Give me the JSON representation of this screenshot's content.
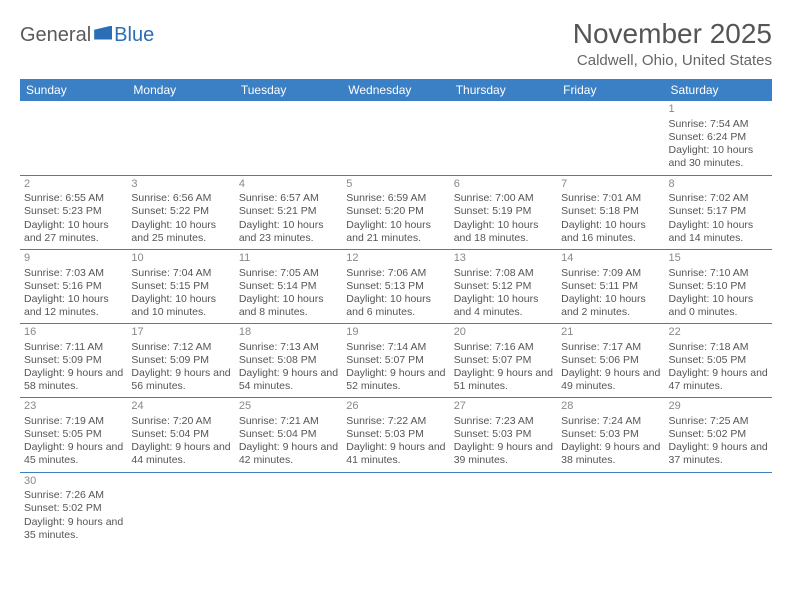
{
  "logo": {
    "general": "General",
    "blue": "Blue"
  },
  "title": "November 2025",
  "subtitle": "Caldwell, Ohio, United States",
  "colors": {
    "header_bg": "#3b7fc4",
    "header_text": "#ffffff",
    "border": "#3b7fc4",
    "text": "#555555",
    "daynum": "#888888",
    "logo_gray": "#5a5a5a",
    "logo_blue": "#2a6fb5"
  },
  "weekdays": [
    "Sunday",
    "Monday",
    "Tuesday",
    "Wednesday",
    "Thursday",
    "Friday",
    "Saturday"
  ],
  "weeks": [
    [
      null,
      null,
      null,
      null,
      null,
      null,
      {
        "n": "1",
        "sr": "7:54 AM",
        "ss": "6:24 PM",
        "dl": "10 hours and 30 minutes."
      }
    ],
    [
      {
        "n": "2",
        "sr": "6:55 AM",
        "ss": "5:23 PM",
        "dl": "10 hours and 27 minutes."
      },
      {
        "n": "3",
        "sr": "6:56 AM",
        "ss": "5:22 PM",
        "dl": "10 hours and 25 minutes."
      },
      {
        "n": "4",
        "sr": "6:57 AM",
        "ss": "5:21 PM",
        "dl": "10 hours and 23 minutes."
      },
      {
        "n": "5",
        "sr": "6:59 AM",
        "ss": "5:20 PM",
        "dl": "10 hours and 21 minutes."
      },
      {
        "n": "6",
        "sr": "7:00 AM",
        "ss": "5:19 PM",
        "dl": "10 hours and 18 minutes."
      },
      {
        "n": "7",
        "sr": "7:01 AM",
        "ss": "5:18 PM",
        "dl": "10 hours and 16 minutes."
      },
      {
        "n": "8",
        "sr": "7:02 AM",
        "ss": "5:17 PM",
        "dl": "10 hours and 14 minutes."
      }
    ],
    [
      {
        "n": "9",
        "sr": "7:03 AM",
        "ss": "5:16 PM",
        "dl": "10 hours and 12 minutes."
      },
      {
        "n": "10",
        "sr": "7:04 AM",
        "ss": "5:15 PM",
        "dl": "10 hours and 10 minutes."
      },
      {
        "n": "11",
        "sr": "7:05 AM",
        "ss": "5:14 PM",
        "dl": "10 hours and 8 minutes."
      },
      {
        "n": "12",
        "sr": "7:06 AM",
        "ss": "5:13 PM",
        "dl": "10 hours and 6 minutes."
      },
      {
        "n": "13",
        "sr": "7:08 AM",
        "ss": "5:12 PM",
        "dl": "10 hours and 4 minutes."
      },
      {
        "n": "14",
        "sr": "7:09 AM",
        "ss": "5:11 PM",
        "dl": "10 hours and 2 minutes."
      },
      {
        "n": "15",
        "sr": "7:10 AM",
        "ss": "5:10 PM",
        "dl": "10 hours and 0 minutes."
      }
    ],
    [
      {
        "n": "16",
        "sr": "7:11 AM",
        "ss": "5:09 PM",
        "dl": "9 hours and 58 minutes."
      },
      {
        "n": "17",
        "sr": "7:12 AM",
        "ss": "5:09 PM",
        "dl": "9 hours and 56 minutes."
      },
      {
        "n": "18",
        "sr": "7:13 AM",
        "ss": "5:08 PM",
        "dl": "9 hours and 54 minutes."
      },
      {
        "n": "19",
        "sr": "7:14 AM",
        "ss": "5:07 PM",
        "dl": "9 hours and 52 minutes."
      },
      {
        "n": "20",
        "sr": "7:16 AM",
        "ss": "5:07 PM",
        "dl": "9 hours and 51 minutes."
      },
      {
        "n": "21",
        "sr": "7:17 AM",
        "ss": "5:06 PM",
        "dl": "9 hours and 49 minutes."
      },
      {
        "n": "22",
        "sr": "7:18 AM",
        "ss": "5:05 PM",
        "dl": "9 hours and 47 minutes."
      }
    ],
    [
      {
        "n": "23",
        "sr": "7:19 AM",
        "ss": "5:05 PM",
        "dl": "9 hours and 45 minutes."
      },
      {
        "n": "24",
        "sr": "7:20 AM",
        "ss": "5:04 PM",
        "dl": "9 hours and 44 minutes."
      },
      {
        "n": "25",
        "sr": "7:21 AM",
        "ss": "5:04 PM",
        "dl": "9 hours and 42 minutes."
      },
      {
        "n": "26",
        "sr": "7:22 AM",
        "ss": "5:03 PM",
        "dl": "9 hours and 41 minutes."
      },
      {
        "n": "27",
        "sr": "7:23 AM",
        "ss": "5:03 PM",
        "dl": "9 hours and 39 minutes."
      },
      {
        "n": "28",
        "sr": "7:24 AM",
        "ss": "5:03 PM",
        "dl": "9 hours and 38 minutes."
      },
      {
        "n": "29",
        "sr": "7:25 AM",
        "ss": "5:02 PM",
        "dl": "9 hours and 37 minutes."
      }
    ],
    [
      {
        "n": "30",
        "sr": "7:26 AM",
        "ss": "5:02 PM",
        "dl": "9 hours and 35 minutes."
      },
      null,
      null,
      null,
      null,
      null,
      null
    ]
  ],
  "labels": {
    "sunrise": "Sunrise: ",
    "sunset": "Sunset: ",
    "daylight": "Daylight: "
  }
}
